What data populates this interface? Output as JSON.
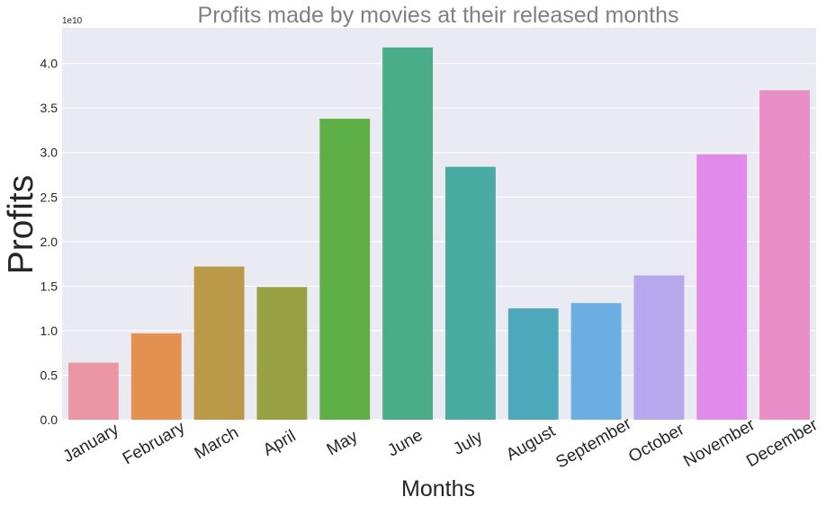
{
  "chart_data": {
    "type": "bar",
    "title": "Profits made by movies at their released months",
    "xlabel": "Months",
    "ylabel": "Profits",
    "offset_label": "1e10",
    "ylim": [
      0,
      4.4
    ],
    "scale": 10000000000,
    "yticks": [
      "0.0",
      "0.5",
      "1.0",
      "1.5",
      "2.0",
      "2.5",
      "3.0",
      "3.5",
      "4.0"
    ],
    "grid": true,
    "categories": [
      "January",
      "February",
      "March",
      "April",
      "May",
      "June",
      "July",
      "August",
      "September",
      "October",
      "November",
      "December"
    ],
    "values": [
      0.64,
      0.97,
      1.72,
      1.49,
      3.38,
      4.18,
      2.84,
      1.25,
      1.31,
      1.62,
      2.98,
      3.7
    ],
    "colors": [
      "#ea96a3",
      "#e39051",
      "#ba9a49",
      "#98a143",
      "#5eaf46",
      "#49ae88",
      "#4aaba2",
      "#4ea8bc",
      "#6bafe2",
      "#b7a7ec",
      "#e08bea",
      "#e98ec7"
    ]
  }
}
